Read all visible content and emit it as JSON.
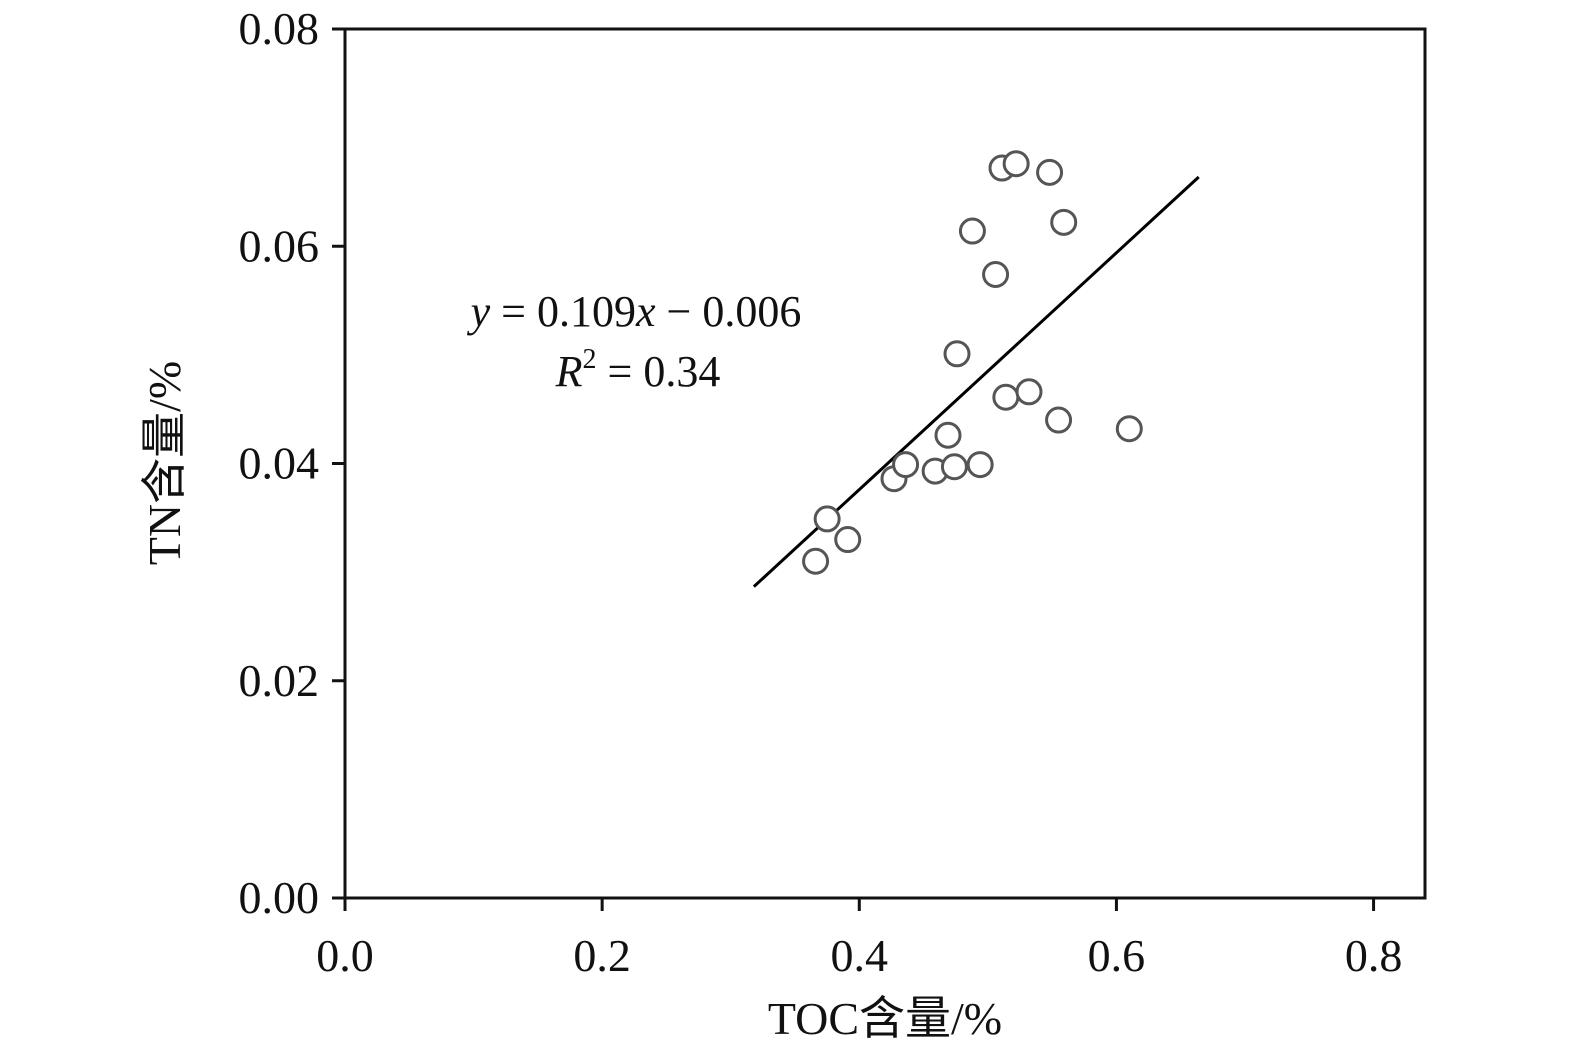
{
  "chart_data": {
    "type": "scatter",
    "xlabel": "TOC含量/%",
    "ylabel": "TN含量/%",
    "xlim": [
      0.0,
      0.84
    ],
    "ylim": [
      0.0,
      0.08
    ],
    "x_ticks": [
      0.0,
      0.2,
      0.4,
      0.6,
      0.8
    ],
    "x_tick_labels": [
      "0.0",
      "0.2",
      "0.4",
      "0.6",
      "0.8"
    ],
    "y_ticks": [
      0.0,
      0.02,
      0.04,
      0.06,
      0.08
    ],
    "y_tick_labels": [
      "0.00",
      "0.02",
      "0.04",
      "0.06",
      "0.08"
    ],
    "grid": false,
    "series": [
      {
        "points": [
          {
            "x": 0.366,
            "y": 0.031
          },
          {
            "x": 0.375,
            "y": 0.0349
          },
          {
            "x": 0.391,
            "y": 0.033
          },
          {
            "x": 0.427,
            "y": 0.0386
          },
          {
            "x": 0.436,
            "y": 0.0399
          },
          {
            "x": 0.459,
            "y": 0.0393
          },
          {
            "x": 0.469,
            "y": 0.0426
          },
          {
            "x": 0.474,
            "y": 0.0397
          },
          {
            "x": 0.494,
            "y": 0.0399
          },
          {
            "x": 0.476,
            "y": 0.0501
          },
          {
            "x": 0.488,
            "y": 0.0614
          },
          {
            "x": 0.506,
            "y": 0.0574
          },
          {
            "x": 0.511,
            "y": 0.0672
          },
          {
            "x": 0.522,
            "y": 0.0676
          },
          {
            "x": 0.548,
            "y": 0.0668
          },
          {
            "x": 0.559,
            "y": 0.0622
          },
          {
            "x": 0.514,
            "y": 0.0461
          },
          {
            "x": 0.532,
            "y": 0.0466
          },
          {
            "x": 0.555,
            "y": 0.044
          },
          {
            "x": 0.61,
            "y": 0.0432
          }
        ],
        "color": "#555555"
      }
    ],
    "trendline": {
      "slope": 0.109,
      "intercept": -0.006,
      "x_range": [
        0.318,
        0.664
      ],
      "color": "#000000"
    },
    "annotations": {
      "equation_y": "y",
      "equation_mid": " = 0.109",
      "equation_x": "x",
      "equation_tail": " − 0.006",
      "r2_R": "R",
      "r2_sup": "2",
      "r2_tail": " = 0.34"
    }
  }
}
